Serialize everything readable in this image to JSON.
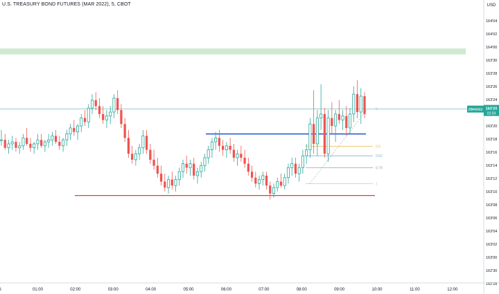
{
  "header": {
    "symbol_title": "U.S. TREASURY BOND FUTURES (MAR 2022), 5, CBOT"
  },
  "price_axis": {
    "currency": "USD",
    "ticks": [
      "164'04",
      "164'02",
      "164'00",
      "163'30",
      "163'28",
      "163'26",
      "163'24",
      "163'22",
      "163'20",
      "163'18",
      "163'16",
      "163'14",
      "163'12",
      "163'10",
      "163'08",
      "163'06",
      "163'04",
      "163'02",
      "163'00",
      "162'30",
      "162'28",
      "162'26"
    ]
  },
  "time_axis": {
    "ticks": [
      "6",
      "01:00",
      "02:00",
      "03:00",
      "04:00",
      "05:00",
      "06:00",
      "07:00",
      "08:00",
      "09:00",
      "10:00",
      "11:00",
      "12:00"
    ]
  },
  "last_price": {
    "symbol": "ZBH2022",
    "price": "163'20",
    "countdown": "02:59"
  },
  "fib_levels": [
    {
      "label": "0",
      "price": 163.625,
      "color": "#8fc8c0"
    },
    {
      "label": "0.5",
      "price": 163.4375,
      "color": "#e8b84a"
    },
    {
      "label": "0.62",
      "price": 163.39,
      "color": "#7fb0d8"
    },
    {
      "label": "0.79",
      "price": 163.33,
      "color": "#a0a0a0"
    },
    {
      "label": "1",
      "price": 163.25,
      "color": "#c8c8c8"
    }
  ],
  "chart_data": {
    "type": "candlestick",
    "title": "U.S. TREASURY BOND FUTURES (MAR 2022), 5, CBOT",
    "ylim": [
      162.75,
      164.16
    ],
    "colors": {
      "up": "#26a69a",
      "down": "#ef5350",
      "zone": "#c8e6c9",
      "support": "#e53935",
      "resistance": "#1e4fd8",
      "last_line": "#26a69a"
    },
    "zones": [
      {
        "from": 163.9,
        "to": 163.93
      }
    ],
    "support_level": 163.19,
    "resistance_level": 163.5,
    "candles": [
      {
        "o": 163.47,
        "h": 163.52,
        "l": 163.44,
        "c": 163.47
      },
      {
        "o": 163.47,
        "h": 163.5,
        "l": 163.42,
        "c": 163.43
      },
      {
        "o": 163.43,
        "h": 163.47,
        "l": 163.4,
        "c": 163.45
      },
      {
        "o": 163.45,
        "h": 163.49,
        "l": 163.42,
        "c": 163.46
      },
      {
        "o": 163.46,
        "h": 163.48,
        "l": 163.41,
        "c": 163.43
      },
      {
        "o": 163.43,
        "h": 163.46,
        "l": 163.4,
        "c": 163.44
      },
      {
        "o": 163.44,
        "h": 163.5,
        "l": 163.42,
        "c": 163.48
      },
      {
        "o": 163.48,
        "h": 163.53,
        "l": 163.44,
        "c": 163.45
      },
      {
        "o": 163.45,
        "h": 163.48,
        "l": 163.41,
        "c": 163.43
      },
      {
        "o": 163.43,
        "h": 163.46,
        "l": 163.4,
        "c": 163.45
      },
      {
        "o": 163.45,
        "h": 163.5,
        "l": 163.42,
        "c": 163.47
      },
      {
        "o": 163.47,
        "h": 163.5,
        "l": 163.43,
        "c": 163.44
      },
      {
        "o": 163.44,
        "h": 163.47,
        "l": 163.41,
        "c": 163.46
      },
      {
        "o": 163.46,
        "h": 163.5,
        "l": 163.43,
        "c": 163.47
      },
      {
        "o": 163.47,
        "h": 163.51,
        "l": 163.44,
        "c": 163.49
      },
      {
        "o": 163.49,
        "h": 163.52,
        "l": 163.45,
        "c": 163.46
      },
      {
        "o": 163.46,
        "h": 163.49,
        "l": 163.42,
        "c": 163.44
      },
      {
        "o": 163.44,
        "h": 163.48,
        "l": 163.41,
        "c": 163.47
      },
      {
        "o": 163.47,
        "h": 163.52,
        "l": 163.44,
        "c": 163.5
      },
      {
        "o": 163.5,
        "h": 163.55,
        "l": 163.47,
        "c": 163.53
      },
      {
        "o": 163.53,
        "h": 163.57,
        "l": 163.49,
        "c": 163.51
      },
      {
        "o": 163.51,
        "h": 163.55,
        "l": 163.47,
        "c": 163.54
      },
      {
        "o": 163.54,
        "h": 163.6,
        "l": 163.51,
        "c": 163.58
      },
      {
        "o": 163.58,
        "h": 163.62,
        "l": 163.54,
        "c": 163.56
      },
      {
        "o": 163.56,
        "h": 163.65,
        "l": 163.53,
        "c": 163.63
      },
      {
        "o": 163.63,
        "h": 163.7,
        "l": 163.6,
        "c": 163.67
      },
      {
        "o": 163.67,
        "h": 163.71,
        "l": 163.62,
        "c": 163.64
      },
      {
        "o": 163.64,
        "h": 163.68,
        "l": 163.58,
        "c": 163.6
      },
      {
        "o": 163.6,
        "h": 163.64,
        "l": 163.55,
        "c": 163.57
      },
      {
        "o": 163.57,
        "h": 163.62,
        "l": 163.53,
        "c": 163.59
      },
      {
        "o": 163.59,
        "h": 163.64,
        "l": 163.55,
        "c": 163.61
      },
      {
        "o": 163.61,
        "h": 163.7,
        "l": 163.58,
        "c": 163.68
      },
      {
        "o": 163.68,
        "h": 163.72,
        "l": 163.6,
        "c": 163.62
      },
      {
        "o": 163.62,
        "h": 163.65,
        "l": 163.53,
        "c": 163.55
      },
      {
        "o": 163.55,
        "h": 163.58,
        "l": 163.46,
        "c": 163.48
      },
      {
        "o": 163.48,
        "h": 163.52,
        "l": 163.38,
        "c": 163.4
      },
      {
        "o": 163.4,
        "h": 163.44,
        "l": 163.35,
        "c": 163.37
      },
      {
        "o": 163.37,
        "h": 163.42,
        "l": 163.34,
        "c": 163.4
      },
      {
        "o": 163.4,
        "h": 163.45,
        "l": 163.37,
        "c": 163.43
      },
      {
        "o": 163.43,
        "h": 163.52,
        "l": 163.4,
        "c": 163.49
      },
      {
        "o": 163.49,
        "h": 163.52,
        "l": 163.4,
        "c": 163.42
      },
      {
        "o": 163.42,
        "h": 163.45,
        "l": 163.35,
        "c": 163.37
      },
      {
        "o": 163.37,
        "h": 163.42,
        "l": 163.32,
        "c": 163.34
      },
      {
        "o": 163.34,
        "h": 163.38,
        "l": 163.28,
        "c": 163.3
      },
      {
        "o": 163.3,
        "h": 163.34,
        "l": 163.24,
        "c": 163.26
      },
      {
        "o": 163.26,
        "h": 163.3,
        "l": 163.21,
        "c": 163.23
      },
      {
        "o": 163.23,
        "h": 163.29,
        "l": 163.2,
        "c": 163.27
      },
      {
        "o": 163.27,
        "h": 163.31,
        "l": 163.22,
        "c": 163.24
      },
      {
        "o": 163.24,
        "h": 163.29,
        "l": 163.21,
        "c": 163.27
      },
      {
        "o": 163.27,
        "h": 163.33,
        "l": 163.24,
        "c": 163.31
      },
      {
        "o": 163.31,
        "h": 163.37,
        "l": 163.28,
        "c": 163.35
      },
      {
        "o": 163.35,
        "h": 163.39,
        "l": 163.3,
        "c": 163.33
      },
      {
        "o": 163.33,
        "h": 163.37,
        "l": 163.29,
        "c": 163.35
      },
      {
        "o": 163.35,
        "h": 163.38,
        "l": 163.27,
        "c": 163.29
      },
      {
        "o": 163.29,
        "h": 163.33,
        "l": 163.25,
        "c": 163.31
      },
      {
        "o": 163.31,
        "h": 163.36,
        "l": 163.28,
        "c": 163.34
      },
      {
        "o": 163.34,
        "h": 163.4,
        "l": 163.31,
        "c": 163.38
      },
      {
        "o": 163.38,
        "h": 163.44,
        "l": 163.35,
        "c": 163.42
      },
      {
        "o": 163.42,
        "h": 163.48,
        "l": 163.38,
        "c": 163.46
      },
      {
        "o": 163.46,
        "h": 163.51,
        "l": 163.42,
        "c": 163.48
      },
      {
        "o": 163.48,
        "h": 163.52,
        "l": 163.41,
        "c": 163.44
      },
      {
        "o": 163.44,
        "h": 163.47,
        "l": 163.39,
        "c": 163.42
      },
      {
        "o": 163.42,
        "h": 163.46,
        "l": 163.38,
        "c": 163.44
      },
      {
        "o": 163.44,
        "h": 163.48,
        "l": 163.4,
        "c": 163.42
      },
      {
        "o": 163.42,
        "h": 163.45,
        "l": 163.36,
        "c": 163.38
      },
      {
        "o": 163.38,
        "h": 163.42,
        "l": 163.34,
        "c": 163.4
      },
      {
        "o": 163.4,
        "h": 163.44,
        "l": 163.36,
        "c": 163.38
      },
      {
        "o": 163.38,
        "h": 163.42,
        "l": 163.33,
        "c": 163.35
      },
      {
        "o": 163.35,
        "h": 163.38,
        "l": 163.29,
        "c": 163.31
      },
      {
        "o": 163.31,
        "h": 163.34,
        "l": 163.26,
        "c": 163.28
      },
      {
        "o": 163.28,
        "h": 163.31,
        "l": 163.23,
        "c": 163.25
      },
      {
        "o": 163.25,
        "h": 163.29,
        "l": 163.22,
        "c": 163.27
      },
      {
        "o": 163.27,
        "h": 163.31,
        "l": 163.24,
        "c": 163.29
      },
      {
        "o": 163.29,
        "h": 163.31,
        "l": 163.22,
        "c": 163.24
      },
      {
        "o": 163.24,
        "h": 163.26,
        "l": 163.17,
        "c": 163.2
      },
      {
        "o": 163.2,
        "h": 163.25,
        "l": 163.18,
        "c": 163.23
      },
      {
        "o": 163.23,
        "h": 163.28,
        "l": 163.21,
        "c": 163.26
      },
      {
        "o": 163.26,
        "h": 163.3,
        "l": 163.23,
        "c": 163.24
      },
      {
        "o": 163.24,
        "h": 163.3,
        "l": 163.22,
        "c": 163.28
      },
      {
        "o": 163.28,
        "h": 163.35,
        "l": 163.25,
        "c": 163.33
      },
      {
        "o": 163.33,
        "h": 163.38,
        "l": 163.29,
        "c": 163.35
      },
      {
        "o": 163.35,
        "h": 163.38,
        "l": 163.28,
        "c": 163.3
      },
      {
        "o": 163.3,
        "h": 163.35,
        "l": 163.26,
        "c": 163.33
      },
      {
        "o": 163.33,
        "h": 163.42,
        "l": 163.3,
        "c": 163.39
      },
      {
        "o": 163.39,
        "h": 163.45,
        "l": 163.35,
        "c": 163.42
      },
      {
        "o": 163.42,
        "h": 163.58,
        "l": 163.38,
        "c": 163.55
      },
      {
        "o": 163.55,
        "h": 163.72,
        "l": 163.4,
        "c": 163.45
      },
      {
        "o": 163.45,
        "h": 163.62,
        "l": 163.39,
        "c": 163.58
      },
      {
        "o": 163.58,
        "h": 163.75,
        "l": 163.52,
        "c": 163.6
      },
      {
        "o": 163.6,
        "h": 163.63,
        "l": 163.38,
        "c": 163.4
      },
      {
        "o": 163.4,
        "h": 163.62,
        "l": 163.36,
        "c": 163.58
      },
      {
        "o": 163.58,
        "h": 163.66,
        "l": 163.5,
        "c": 163.54
      },
      {
        "o": 163.54,
        "h": 163.62,
        "l": 163.46,
        "c": 163.6
      },
      {
        "o": 163.6,
        "h": 163.67,
        "l": 163.55,
        "c": 163.57
      },
      {
        "o": 163.57,
        "h": 163.62,
        "l": 163.52,
        "c": 163.59
      },
      {
        "o": 163.59,
        "h": 163.64,
        "l": 163.49,
        "c": 163.53
      },
      {
        "o": 163.53,
        "h": 163.63,
        "l": 163.5,
        "c": 163.6
      },
      {
        "o": 163.6,
        "h": 163.74,
        "l": 163.56,
        "c": 163.7
      },
      {
        "o": 163.7,
        "h": 163.77,
        "l": 163.58,
        "c": 163.61
      },
      {
        "o": 163.61,
        "h": 163.73,
        "l": 163.55,
        "c": 163.69
      },
      {
        "o": 163.69,
        "h": 163.71,
        "l": 163.58,
        "c": 163.6
      }
    ]
  }
}
